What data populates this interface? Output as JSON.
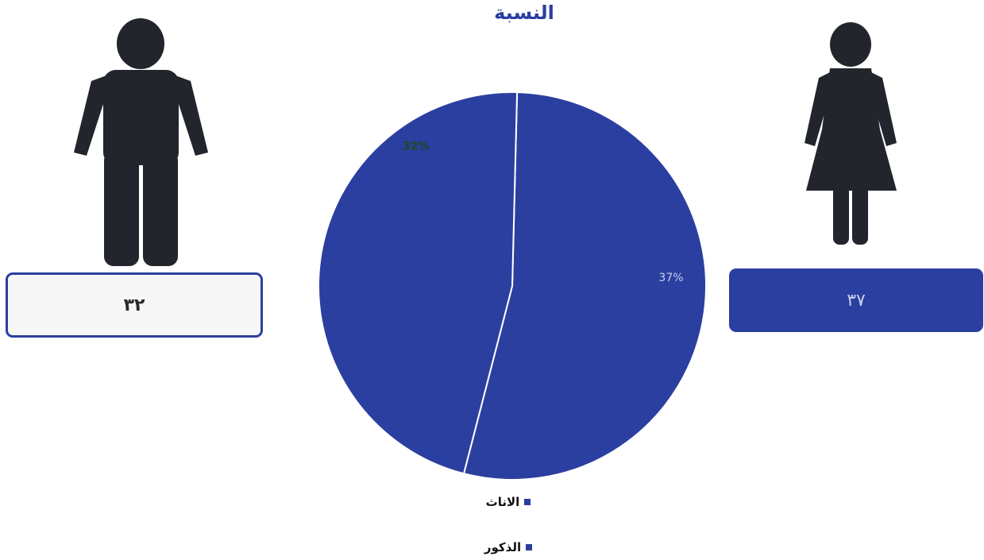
{
  "chart_data": {
    "type": "pie",
    "title": "النسبة",
    "labels": [
      "الاناث",
      "الذكور"
    ],
    "values": [
      37,
      32
    ],
    "value_labels": [
      "37%",
      "32%"
    ],
    "legend": "bottom",
    "colors": [
      "#2b3fa0",
      "#2b3fa0"
    ]
  },
  "counts": {
    "male": "٣٢",
    "female": "٣٧"
  },
  "icons": {
    "male": "male-figure-icon",
    "female": "female-figure-icon"
  },
  "colors": {
    "accent": "#2b3fa0",
    "figure": "#22252c"
  }
}
